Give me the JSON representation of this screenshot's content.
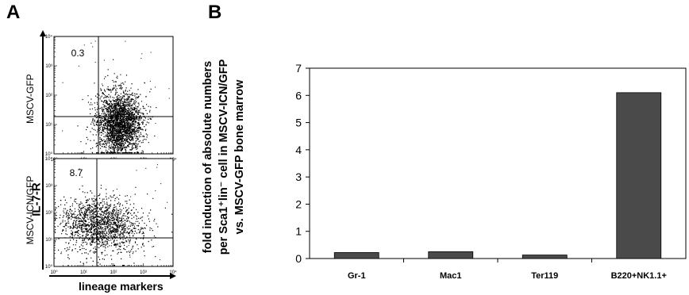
{
  "panel_a": {
    "letter": "A",
    "y_axis_label": "IL-7-R",
    "x_axis_label": "lineage markers",
    "plots": [
      {
        "label": "MSCV-GFP",
        "quadrant_value": "0.3"
      },
      {
        "label": "MSCV-ICN/GFP",
        "quadrant_value": "8.7"
      }
    ]
  },
  "panel_b": {
    "letter": "B",
    "ylabel_lines": [
      "fold induction of absolute numbers",
      "per Sca1⁺lin⁻ cell in MSCV-ICN/GFP",
      "vs. MSCV-GFP bone marrow"
    ]
  },
  "chart_data": {
    "type": "bar",
    "categories": [
      "Gr-1",
      "Mac1",
      "Ter119",
      "B220+NK1.1+"
    ],
    "values": [
      0.22,
      0.25,
      0.13,
      6.1
    ],
    "ylim": [
      0,
      7
    ],
    "yticks": [
      "0",
      "1",
      "2",
      "3",
      "4",
      "5",
      "6",
      "7"
    ],
    "grid": false,
    "bar_color": "#4a4a4a"
  }
}
